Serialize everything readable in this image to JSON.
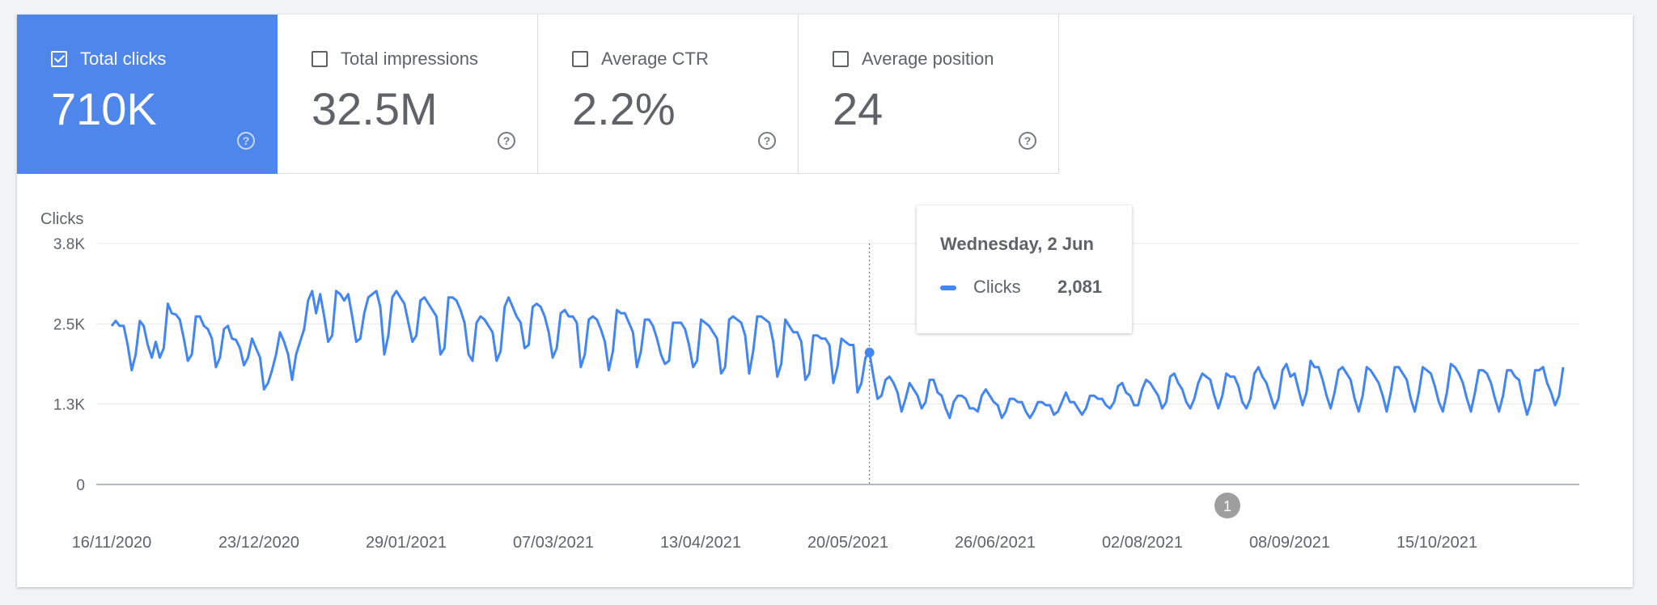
{
  "metrics": [
    {
      "label": "Total clicks",
      "value": "710K",
      "checked": true
    },
    {
      "label": "Total impressions",
      "value": "32.5M",
      "checked": false
    },
    {
      "label": "Average CTR",
      "value": "2.2%",
      "checked": false
    },
    {
      "label": "Average position",
      "value": "24",
      "checked": false
    }
  ],
  "help_glyph": "?",
  "colors": {
    "accent": "#4e86ec",
    "series": "#4285f4",
    "text": "#5f6368",
    "grid": "#e8eaed",
    "annotation": "#9e9e9e"
  },
  "tooltip": {
    "date": "Wednesday, 2 Jun",
    "label": "Clicks",
    "value": "2,081"
  },
  "chart_data": {
    "type": "line",
    "ylabel": "Clicks",
    "ylim": [
      0,
      3800
    ],
    "y_ticks": [
      {
        "label": "0",
        "value": 0
      },
      {
        "label": "1.3K",
        "value": 1267
      },
      {
        "label": "2.5K",
        "value": 2533
      },
      {
        "label": "3.8K",
        "value": 3800
      }
    ],
    "x_tick_labels": [
      "16/11/2020",
      "23/12/2020",
      "29/01/2021",
      "07/03/2021",
      "13/04/2021",
      "20/05/2021",
      "26/06/2021",
      "02/08/2021",
      "08/09/2021",
      "15/10/2021"
    ],
    "x_start": "16/11/2020",
    "grid": true,
    "series": [
      {
        "name": "Clicks",
        "values": [
          2500,
          2580,
          2500,
          2500,
          2200,
          1800,
          2050,
          2580,
          2500,
          2200,
          2000,
          2250,
          2000,
          2150,
          2850,
          2700,
          2680,
          2600,
          2300,
          1950,
          2050,
          2650,
          2650,
          2500,
          2450,
          2300,
          1850,
          2000,
          2450,
          2500,
          2300,
          2280,
          2150,
          1880,
          2000,
          2300,
          2150,
          2000,
          1500,
          1600,
          1800,
          2050,
          2400,
          2250,
          2050,
          1650,
          2050,
          2250,
          2450,
          2900,
          3050,
          2700,
          3000,
          2650,
          2250,
          2350,
          3050,
          3000,
          2900,
          3000,
          2650,
          2250,
          2300,
          2700,
          2950,
          3000,
          3050,
          2800,
          2050,
          2350,
          2950,
          3050,
          2950,
          2850,
          2550,
          2250,
          2350,
          2900,
          2950,
          2850,
          2750,
          2650,
          2050,
          2150,
          2950,
          2950,
          2900,
          2750,
          2550,
          2050,
          1950,
          2550,
          2650,
          2600,
          2500,
          2400,
          1950,
          2100,
          2800,
          2950,
          2800,
          2650,
          2550,
          2150,
          2200,
          2800,
          2850,
          2800,
          2650,
          2400,
          2000,
          2150,
          2700,
          2750,
          2650,
          2650,
          2550,
          1850,
          2050,
          2600,
          2650,
          2600,
          2450,
          2250,
          1800,
          2100,
          2750,
          2700,
          2700,
          2550,
          2400,
          1850,
          2100,
          2600,
          2600,
          2500,
          2300,
          2050,
          1900,
          1950,
          2550,
          2550,
          2550,
          2450,
          2200,
          1850,
          1950,
          2600,
          2550,
          2500,
          2400,
          2300,
          1750,
          1850,
          2600,
          2650,
          2600,
          2550,
          2350,
          1750,
          2100,
          2650,
          2650,
          2600,
          2550,
          2250,
          1700,
          1900,
          2600,
          2500,
          2400,
          2400,
          2250,
          1650,
          1750,
          2350,
          2350,
          2300,
          2300,
          2200,
          1600,
          1850,
          2300,
          2250,
          2200,
          2200,
          1450,
          1600,
          2000,
          2081,
          1700,
          1350,
          1400,
          1650,
          1700,
          1600,
          1450,
          1150,
          1350,
          1600,
          1500,
          1400,
          1200,
          1300,
          1650,
          1650,
          1450,
          1400,
          1200,
          1050,
          1300,
          1400,
          1400,
          1350,
          1200,
          1200,
          1150,
          1400,
          1500,
          1400,
          1300,
          1250,
          1050,
          1150,
          1350,
          1350,
          1300,
          1300,
          1150,
          1050,
          1150,
          1300,
          1300,
          1250,
          1250,
          1100,
          1150,
          1300,
          1450,
          1300,
          1300,
          1200,
          1100,
          1200,
          1400,
          1400,
          1350,
          1350,
          1250,
          1200,
          1300,
          1550,
          1600,
          1450,
          1400,
          1250,
          1250,
          1500,
          1650,
          1600,
          1500,
          1400,
          1200,
          1300,
          1700,
          1750,
          1600,
          1500,
          1300,
          1200,
          1350,
          1600,
          1750,
          1700,
          1650,
          1400,
          1200,
          1400,
          1750,
          1700,
          1700,
          1550,
          1300,
          1200,
          1350,
          1750,
          1850,
          1700,
          1600,
          1400,
          1200,
          1350,
          1800,
          1900,
          1700,
          1750,
          1500,
          1250,
          1450,
          1950,
          1850,
          1850,
          1650,
          1400,
          1200,
          1450,
          1800,
          1850,
          1750,
          1650,
          1350,
          1150,
          1400,
          1850,
          1800,
          1700,
          1600,
          1400,
          1150,
          1450,
          1850,
          1850,
          1750,
          1650,
          1350,
          1150,
          1450,
          1850,
          1800,
          1750,
          1550,
          1300,
          1150,
          1450,
          1900,
          1850,
          1750,
          1600,
          1350,
          1150,
          1450,
          1800,
          1800,
          1750,
          1600,
          1350,
          1150,
          1400,
          1800,
          1800,
          1700,
          1650,
          1350,
          1100,
          1300,
          1800,
          1800,
          1850,
          1600,
          1450,
          1250,
          1400,
          1850
        ]
      }
    ],
    "highlight": {
      "date": "Wednesday, 2 Jun",
      "value": 2081
    },
    "annotation_marker": "1"
  }
}
